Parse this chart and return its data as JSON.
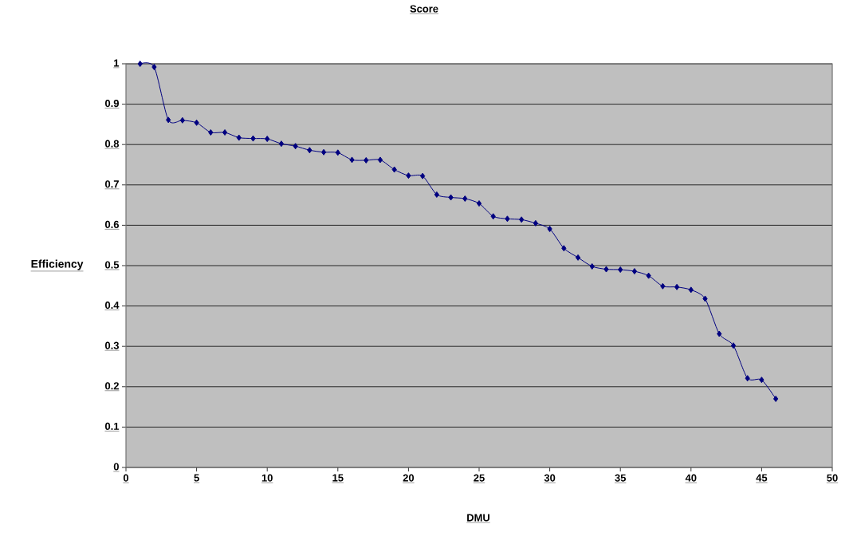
{
  "chart_data": {
    "type": "line",
    "title": "Score",
    "xlabel": "DMU",
    "ylabel": "Efficiency",
    "x": [
      1,
      2,
      3,
      4,
      5,
      6,
      7,
      8,
      9,
      10,
      11,
      12,
      13,
      14,
      15,
      16,
      17,
      18,
      19,
      20,
      21,
      22,
      23,
      24,
      25,
      26,
      27,
      28,
      29,
      30,
      31,
      32,
      33,
      34,
      35,
      36,
      37,
      38,
      39,
      40,
      41,
      42,
      43,
      44,
      45,
      46
    ],
    "series": [
      {
        "color": "#000080",
        "values": [
          1.0,
          0.992,
          0.861,
          0.86,
          0.854,
          0.83,
          0.83,
          0.817,
          0.815,
          0.814,
          0.802,
          0.796,
          0.786,
          0.781,
          0.78,
          0.762,
          0.761,
          0.762,
          0.738,
          0.723,
          0.722,
          0.676,
          0.669,
          0.666,
          0.654,
          0.622,
          0.616,
          0.614,
          0.605,
          0.591,
          0.543,
          0.52,
          0.498,
          0.491,
          0.49,
          0.486,
          0.475,
          0.449,
          0.447,
          0.44,
          0.418,
          0.331,
          0.302,
          0.221,
          0.217,
          0.17
        ]
      }
    ],
    "xlim": [
      0,
      50
    ],
    "xticks": [
      0,
      5,
      10,
      15,
      20,
      25,
      30,
      35,
      40,
      45,
      50
    ],
    "ylim": [
      0,
      1
    ],
    "yticks": [
      0,
      0.1,
      0.2,
      0.3,
      0.4,
      0.5,
      0.6,
      0.7,
      0.8,
      0.9,
      1
    ],
    "grid": "y",
    "legend": false,
    "marker": "diamond",
    "line_style": "solid"
  }
}
